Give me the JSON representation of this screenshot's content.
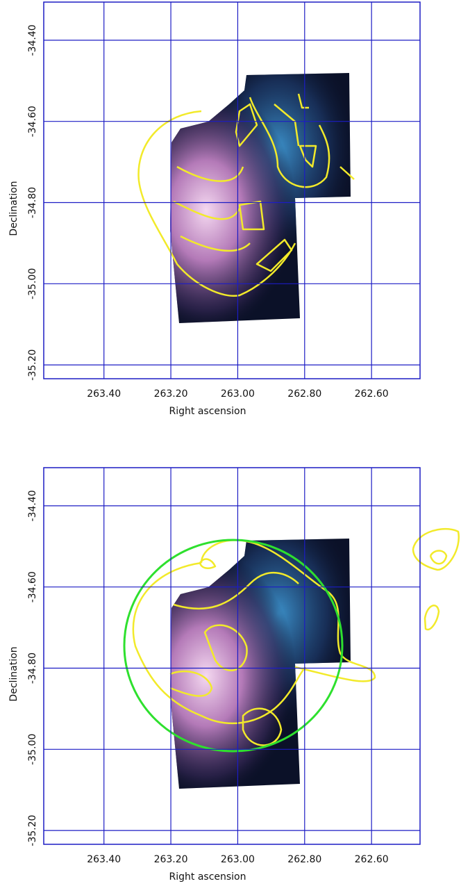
{
  "chart_data": [
    {
      "type": "image",
      "xlabel": "Right ascension",
      "ylabel": "Declination",
      "xlim": [
        263.58,
        262.455
      ],
      "ylim": [
        -35.234,
        -34.306
      ],
      "xticks": [
        {
          "value": 263.4,
          "label": "263.40"
        },
        {
          "value": 263.2,
          "label": "263.20"
        },
        {
          "value": 263.0,
          "label": "263.00"
        },
        {
          "value": 262.8,
          "label": "262.80"
        },
        {
          "value": 262.6,
          "label": "262.60"
        }
      ],
      "yticks": [
        {
          "value": -34.4,
          "label": "-34.40"
        },
        {
          "value": -34.6,
          "label": "-34.60"
        },
        {
          "value": -34.8,
          "label": "-34.80"
        },
        {
          "value": -35.0,
          "label": "-35.00"
        },
        {
          "value": -35.2,
          "label": "-35.20"
        }
      ],
      "grid": true,
      "grid_color": "#1c1cc4"
    },
    {
      "type": "image",
      "xlabel": "Right ascension",
      "ylabel": "Declination",
      "xlim": [
        263.58,
        262.455
      ],
      "ylim": [
        -35.234,
        -34.306
      ],
      "xticks": [
        {
          "value": 263.4,
          "label": "263.40"
        },
        {
          "value": 263.2,
          "label": "263.20"
        },
        {
          "value": 263.0,
          "label": "263.00"
        },
        {
          "value": 262.8,
          "label": "262.80"
        },
        {
          "value": 262.6,
          "label": "262.60"
        }
      ],
      "yticks": [
        {
          "value": -34.4,
          "label": "-34.40"
        },
        {
          "value": -34.6,
          "label": "-34.60"
        },
        {
          "value": -34.8,
          "label": "-34.80"
        },
        {
          "value": -35.0,
          "label": "-35.00"
        },
        {
          "value": -35.2,
          "label": "-35.20"
        }
      ],
      "grid": true,
      "grid_color": "#1c1cc4"
    }
  ]
}
